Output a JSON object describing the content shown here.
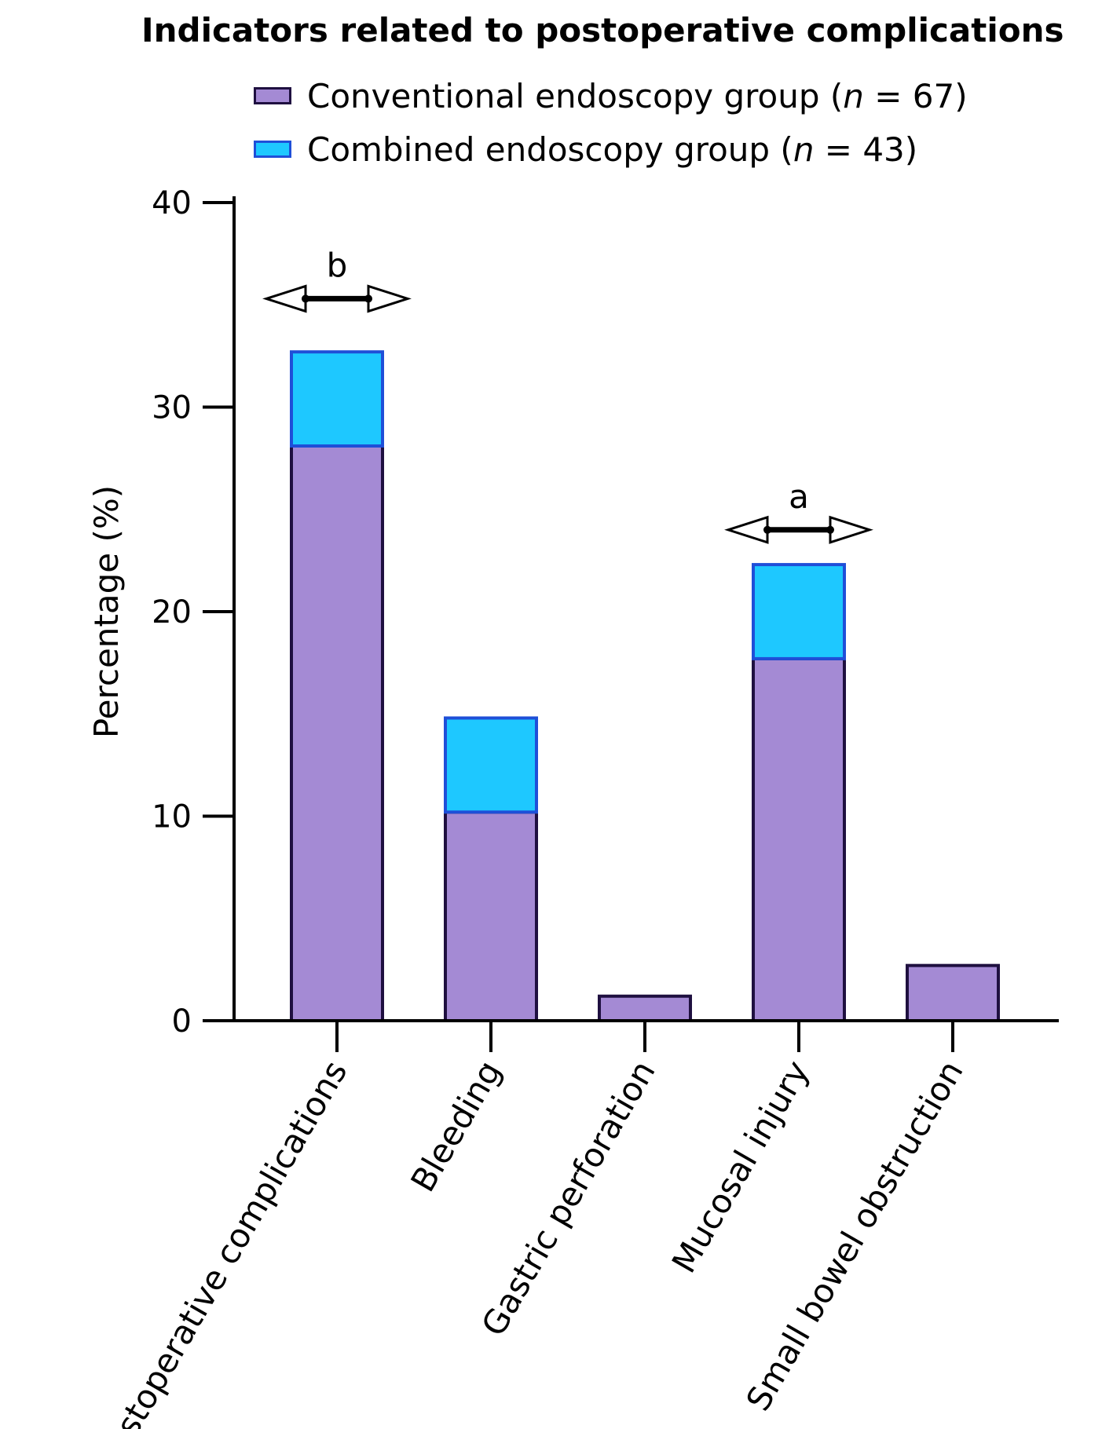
{
  "chart_data": {
    "type": "bar",
    "stacked": true,
    "title": "Indicators related to postoperative complications",
    "ylabel": "Percentage (%)",
    "xlabel": "",
    "ylim": [
      0,
      40
    ],
    "yticks": [
      "0",
      "10",
      "20",
      "30",
      "40"
    ],
    "categories": [
      "Postoperative complications",
      "Bleeding",
      "Gastric perforation",
      "Mucosal injury",
      "Small bowel obstruction"
    ],
    "series": [
      {
        "name": "Conventional endoscopy group (n = 67)",
        "name_prefix": "Conventional endoscopy group (",
        "name_italic": "n",
        "name_suffix": " = 67)",
        "color": "#a48ad4",
        "edge_color": "#1f1040",
        "values": [
          28.1,
          10.2,
          1.2,
          17.7,
          2.7
        ]
      },
      {
        "name": "Combined endoscopy group (n = 43)",
        "name_prefix": "Combined endoscopy group (",
        "name_italic": "n",
        "name_suffix": " = 43)",
        "color": "#1ec8ff",
        "edge_color": "#1f4fd8",
        "values": [
          4.6,
          4.6,
          0,
          4.6,
          0
        ]
      }
    ],
    "annotations": [
      {
        "category_index": 0,
        "label": "b",
        "y": 35.3
      },
      {
        "category_index": 3,
        "label": "a",
        "y": 24.0
      }
    ],
    "legend_position": "top"
  }
}
